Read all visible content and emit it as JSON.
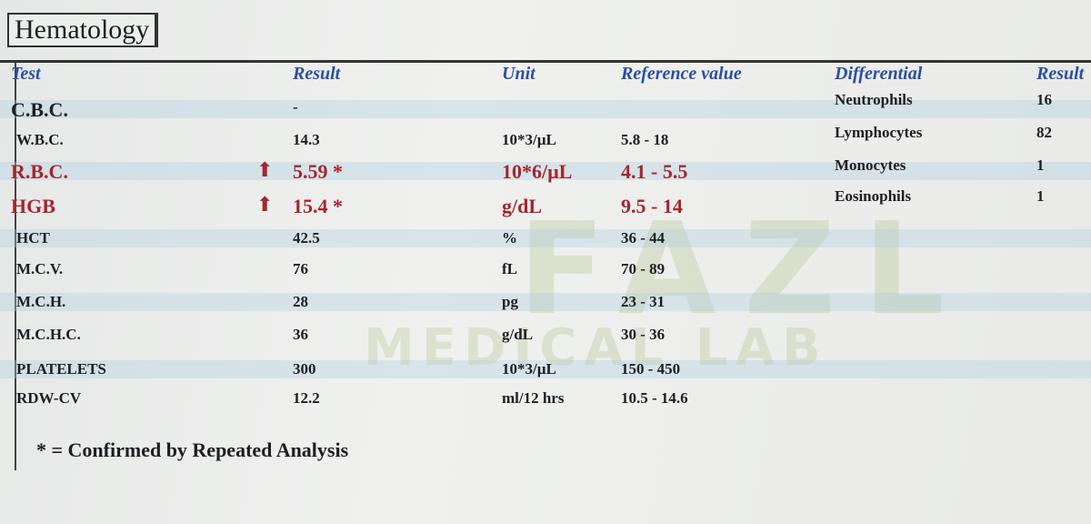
{
  "header": {
    "title": "Hematology"
  },
  "watermark": {
    "name": "FAZL",
    "subtitle": "MEDICAL LAB"
  },
  "table": {
    "columns": [
      "Test",
      "Result",
      "Unit",
      "Reference value"
    ],
    "rows": [
      {
        "test": "C.B.C.",
        "result": "-",
        "large": true
      },
      {
        "test": "W.B.C.",
        "result": "14.3",
        "unit": "10*3/µL",
        "reference": "5.8 - 18"
      },
      {
        "test": "R.B.C.",
        "result": "5.59 *",
        "unit": "10*6/µL",
        "reference": "4.1 - 5.5",
        "high": true,
        "large": true
      },
      {
        "test": "HGB",
        "result": "15.4 *",
        "unit": "g/dL",
        "reference": "9.5 - 14",
        "high": true,
        "large": true
      },
      {
        "test": "HCT",
        "result": "42.5",
        "unit": "%",
        "reference": "36 - 44"
      },
      {
        "test": "M.C.V.",
        "result": "76",
        "unit": "fL",
        "reference": "70 - 89"
      },
      {
        "test": "M.C.H.",
        "result": "28",
        "unit": "pg",
        "reference": "23 - 31"
      },
      {
        "test": "M.C.H.C.",
        "result": "36",
        "unit": "g/dL",
        "reference": "30 - 36"
      },
      {
        "test": "PLATELETS",
        "result": "300",
        "unit": "10*3/µL",
        "reference": "150 - 450"
      },
      {
        "test": "RDW-CV",
        "result": "12.2",
        "unit": "ml/12 hrs",
        "reference": "10.5 - 14.6"
      }
    ]
  },
  "differential": {
    "columns": [
      "Differential",
      "Result"
    ],
    "rows": [
      {
        "name": "Neutrophils",
        "result": "16"
      },
      {
        "name": "Lymphocytes",
        "result": "82"
      },
      {
        "name": "Monocytes",
        "result": "1"
      },
      {
        "name": "Eosinophils",
        "result": "1"
      }
    ]
  },
  "footnote": "* = Confirmed by Repeated Analysis"
}
